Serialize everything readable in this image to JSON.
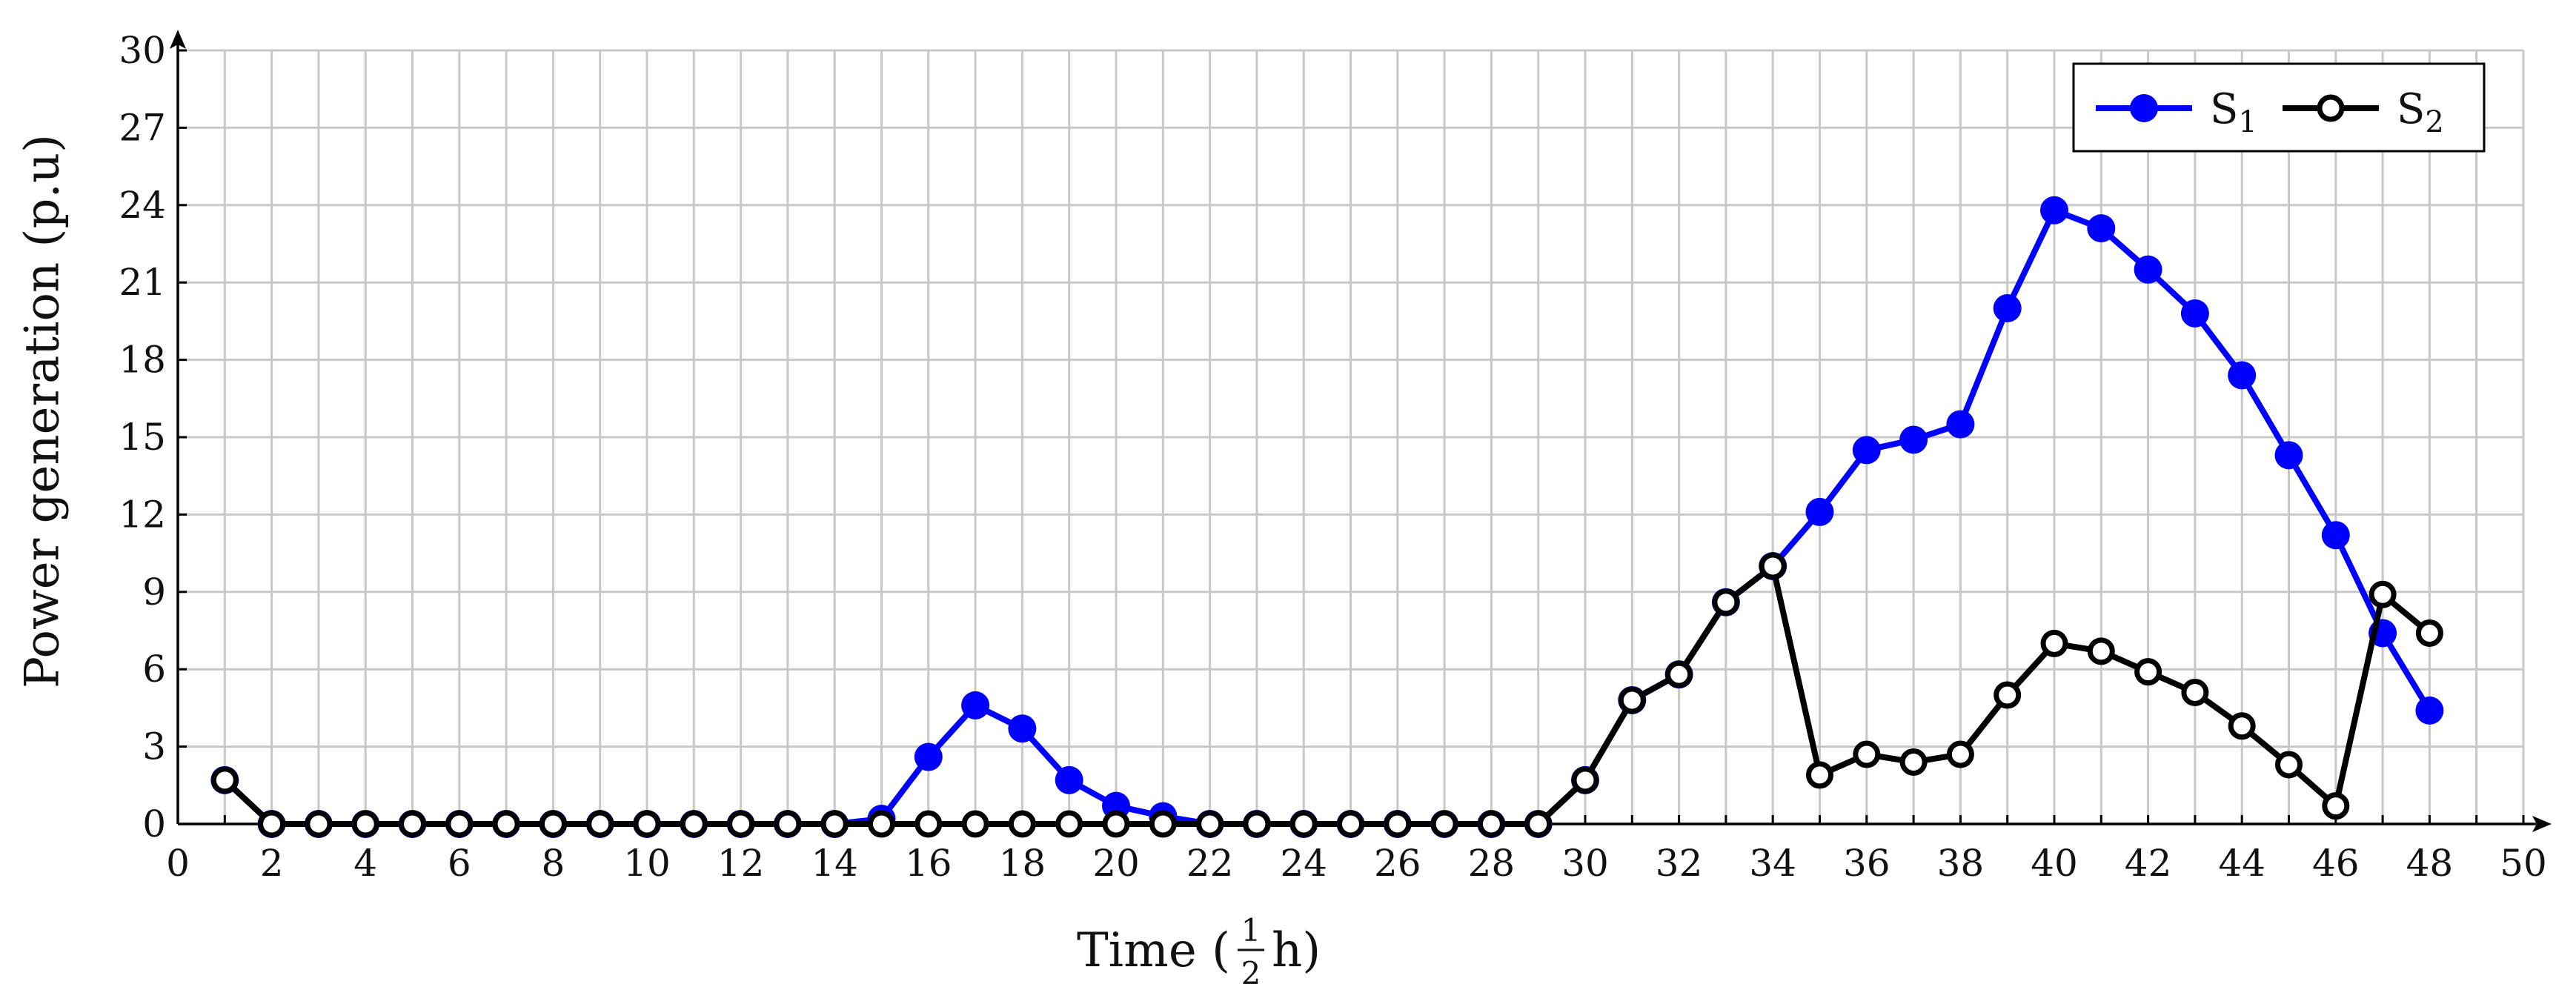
{
  "chart_data": {
    "type": "line",
    "xlabel": {
      "before": "Time (",
      "frac_num": "1",
      "frac_den": "2",
      "after": "h)"
    },
    "ylabel": "Power generation (p.u)",
    "xlim": [
      0,
      50
    ],
    "ylim": [
      0,
      30
    ],
    "xticks": [
      0,
      2,
      4,
      6,
      8,
      10,
      12,
      14,
      16,
      18,
      20,
      22,
      24,
      26,
      28,
      30,
      32,
      34,
      36,
      38,
      40,
      42,
      44,
      46,
      48,
      50
    ],
    "yticks": [
      0,
      3,
      6,
      9,
      12,
      15,
      18,
      21,
      24,
      27,
      30
    ],
    "grid": true,
    "legend_position": "top-right",
    "x": [
      1,
      2,
      3,
      4,
      5,
      6,
      7,
      8,
      9,
      10,
      11,
      12,
      13,
      14,
      15,
      16,
      17,
      18,
      19,
      20,
      21,
      22,
      23,
      24,
      25,
      26,
      27,
      28,
      29,
      30,
      31,
      32,
      33,
      34,
      35,
      36,
      37,
      38,
      39,
      40,
      41,
      42,
      43,
      44,
      45,
      46,
      47,
      48
    ],
    "series": [
      {
        "name": "S",
        "subscript": "1",
        "color": "#0000ff",
        "marker": "filled-circle",
        "values": [
          1.7,
          0,
          0,
          0,
          0,
          0,
          0,
          0,
          0,
          0,
          0,
          0,
          0,
          0,
          0.2,
          2.6,
          4.6,
          3.7,
          1.7,
          0.7,
          0.3,
          0,
          0,
          0,
          0,
          0,
          0,
          0,
          0,
          1.7,
          4.8,
          5.8,
          8.6,
          10.0,
          12.1,
          14.5,
          14.9,
          15.5,
          20.0,
          23.8,
          23.1,
          21.5,
          19.8,
          17.4,
          14.3,
          11.2,
          7.4,
          4.4
        ]
      },
      {
        "name": "S",
        "subscript": "2",
        "color": "#000000",
        "marker": "open-circle",
        "values": [
          1.7,
          0,
          0,
          0,
          0,
          0,
          0,
          0,
          0,
          0,
          0,
          0,
          0,
          0,
          0,
          0,
          0,
          0,
          0,
          0,
          0,
          0,
          0,
          0,
          0,
          0,
          0,
          0,
          0,
          1.7,
          4.8,
          5.8,
          8.6,
          10.0,
          1.9,
          2.7,
          2.4,
          2.7,
          5.0,
          7.0,
          6.7,
          5.9,
          5.1,
          3.8,
          2.3,
          0.7,
          8.9,
          7.4
        ]
      }
    ]
  }
}
